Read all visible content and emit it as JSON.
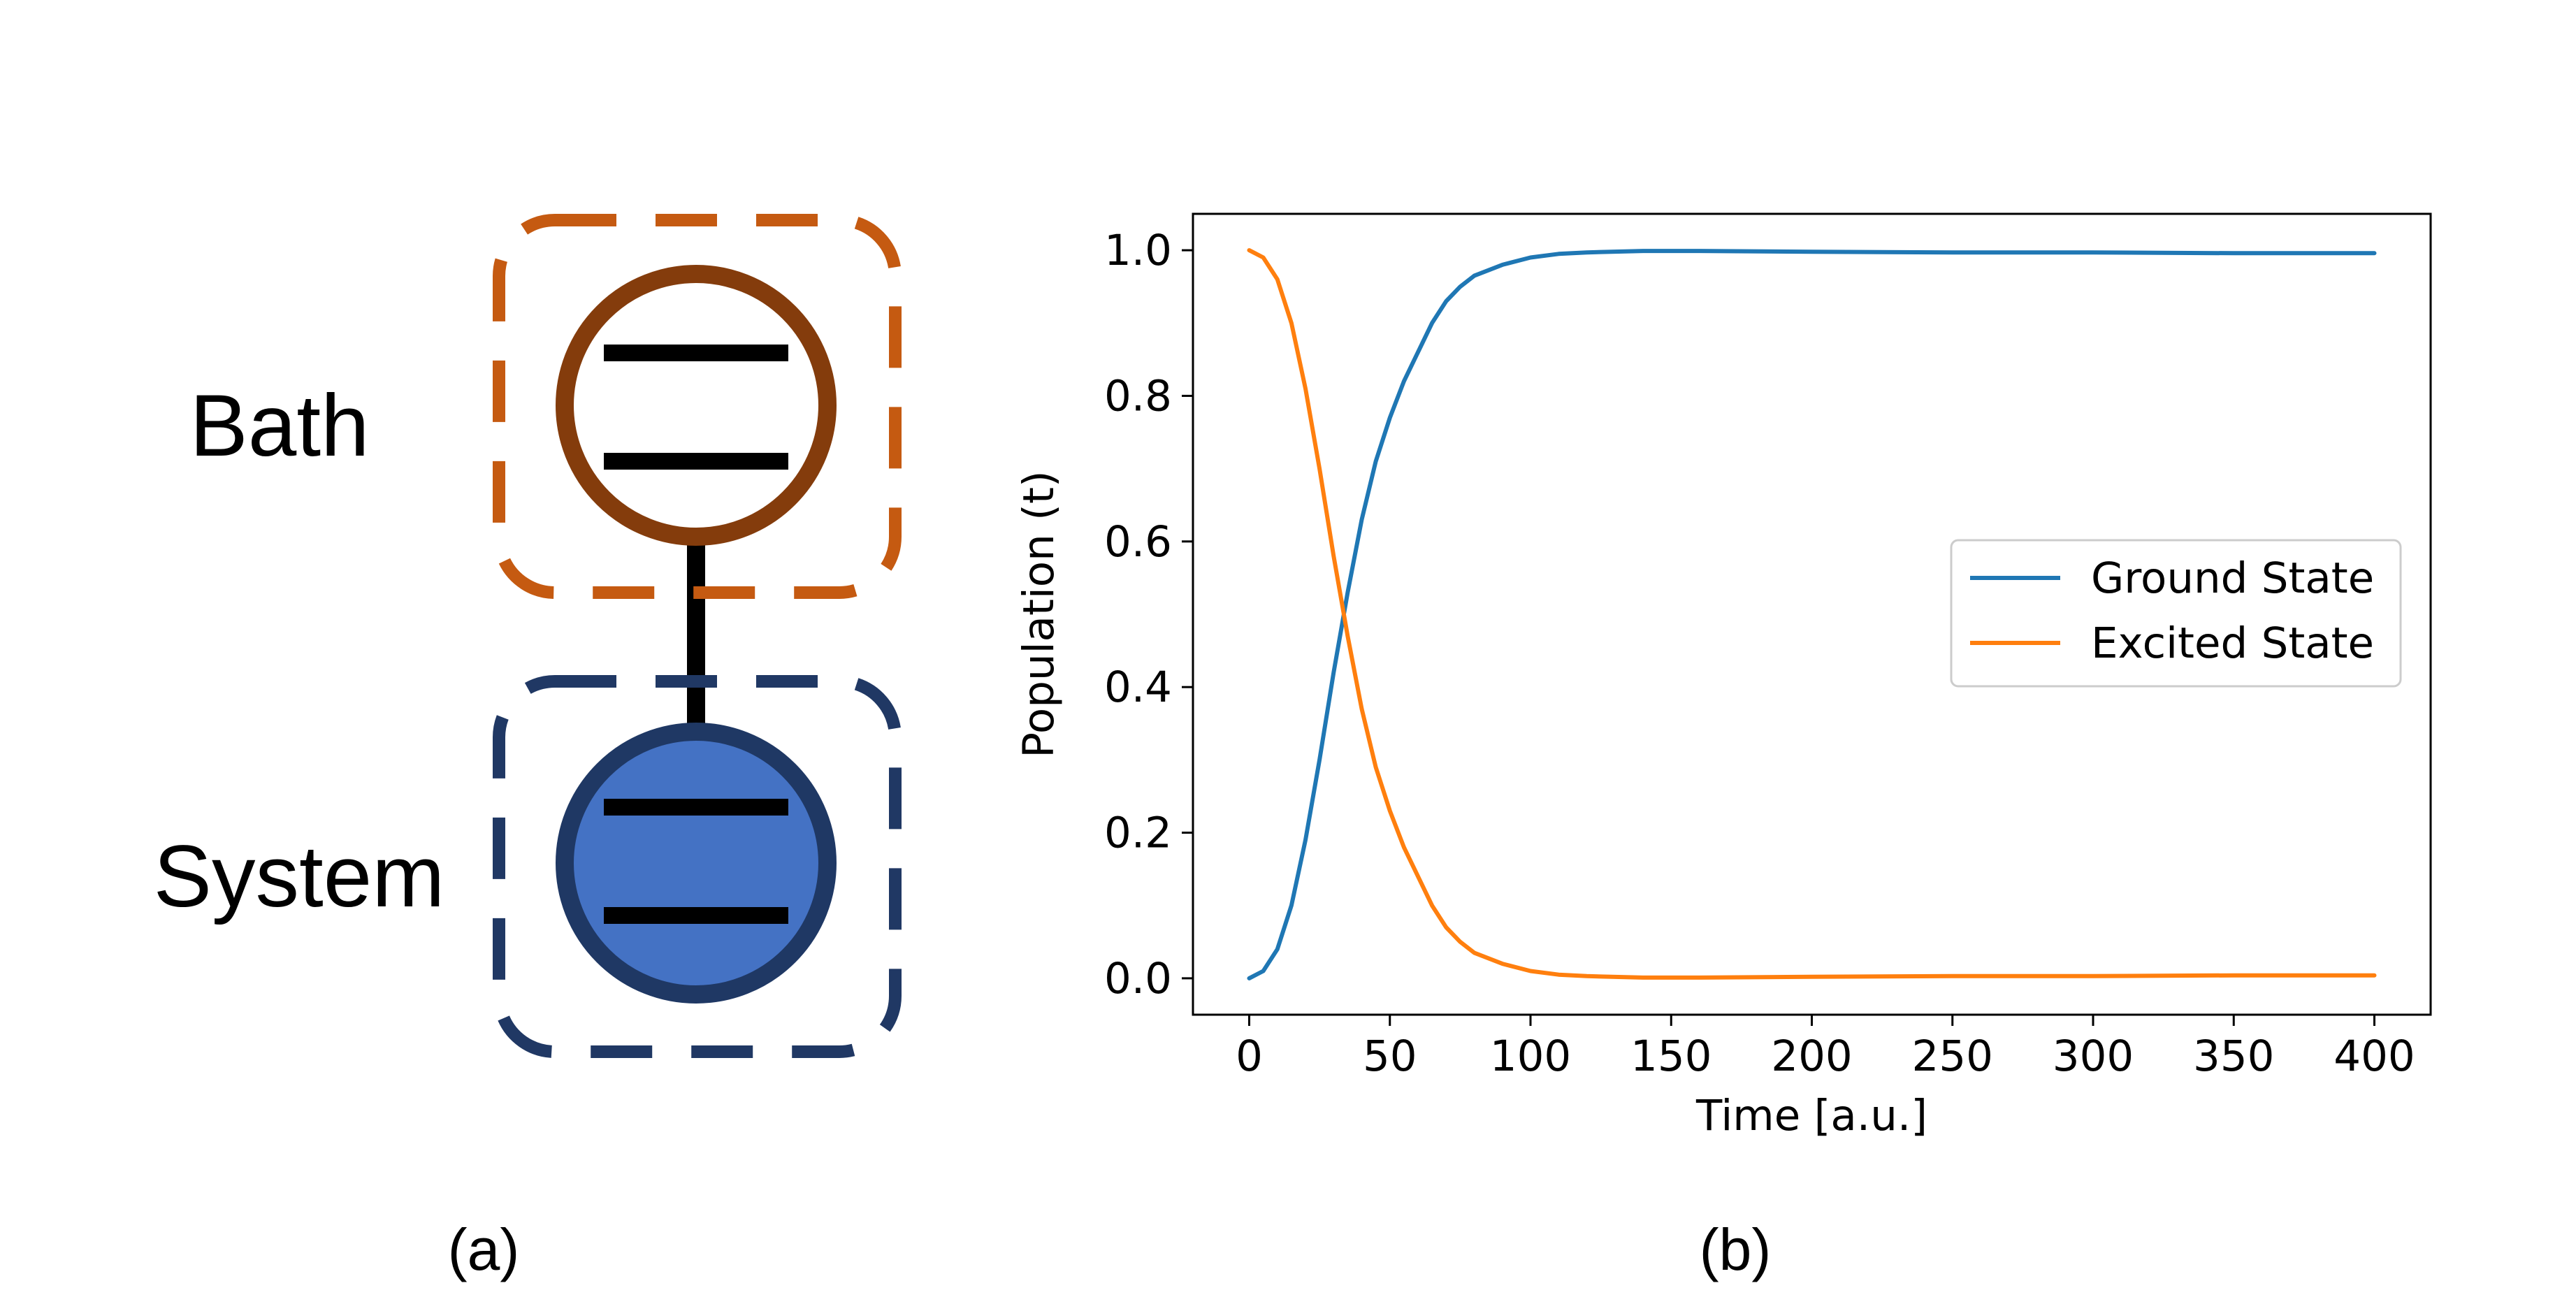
{
  "diagram": {
    "labels": {
      "bath": "Bath",
      "system": "System"
    },
    "colors": {
      "bath_box": "#C55A11",
      "bath_circle": "#843C0C",
      "system_box": "#203864",
      "system_circle_stroke": "#1F3864",
      "system_circle_fill": "#4472C4",
      "levels": "#000000",
      "coupling": "#000000"
    }
  },
  "captions": {
    "a": "(a)",
    "b": "(b)"
  },
  "chart_data": {
    "type": "line",
    "title": "",
    "xlabel": "Time [a.u.]",
    "ylabel": "Population (t)",
    "xlim": [
      -20,
      420
    ],
    "ylim": [
      -0.05,
      1.05
    ],
    "xticks": [
      0,
      50,
      100,
      150,
      200,
      250,
      300,
      350,
      400
    ],
    "xtick_labels": [
      "0",
      "50",
      "100",
      "150",
      "200",
      "250",
      "300",
      "350",
      "400"
    ],
    "yticks": [
      0.0,
      0.2,
      0.4,
      0.6,
      0.8,
      1.0
    ],
    "ytick_labels": [
      "0.0",
      "0.2",
      "0.4",
      "0.6",
      "0.8",
      "1.0"
    ],
    "grid": false,
    "legend": "center-right",
    "x": [
      0,
      5,
      10,
      15,
      20,
      25,
      30,
      35,
      40,
      45,
      50,
      55,
      60,
      65,
      70,
      75,
      80,
      90,
      100,
      110,
      120,
      140,
      160,
      200,
      250,
      300,
      350,
      400
    ],
    "series": [
      {
        "name": "Ground State",
        "color": "#1f77b4",
        "values": [
          0.0,
          0.01,
          0.04,
          0.1,
          0.19,
          0.3,
          0.42,
          0.53,
          0.63,
          0.71,
          0.77,
          0.82,
          0.86,
          0.9,
          0.93,
          0.95,
          0.965,
          0.98,
          0.99,
          0.995,
          0.997,
          0.999,
          0.999,
          0.998,
          0.997,
          0.997,
          0.996,
          0.996
        ]
      },
      {
        "name": "Excited State",
        "color": "#ff7f0e",
        "values": [
          1.0,
          0.99,
          0.96,
          0.9,
          0.81,
          0.7,
          0.58,
          0.47,
          0.37,
          0.29,
          0.23,
          0.18,
          0.14,
          0.1,
          0.07,
          0.05,
          0.035,
          0.02,
          0.01,
          0.005,
          0.003,
          0.001,
          0.001,
          0.002,
          0.003,
          0.003,
          0.004,
          0.004
        ]
      }
    ]
  }
}
